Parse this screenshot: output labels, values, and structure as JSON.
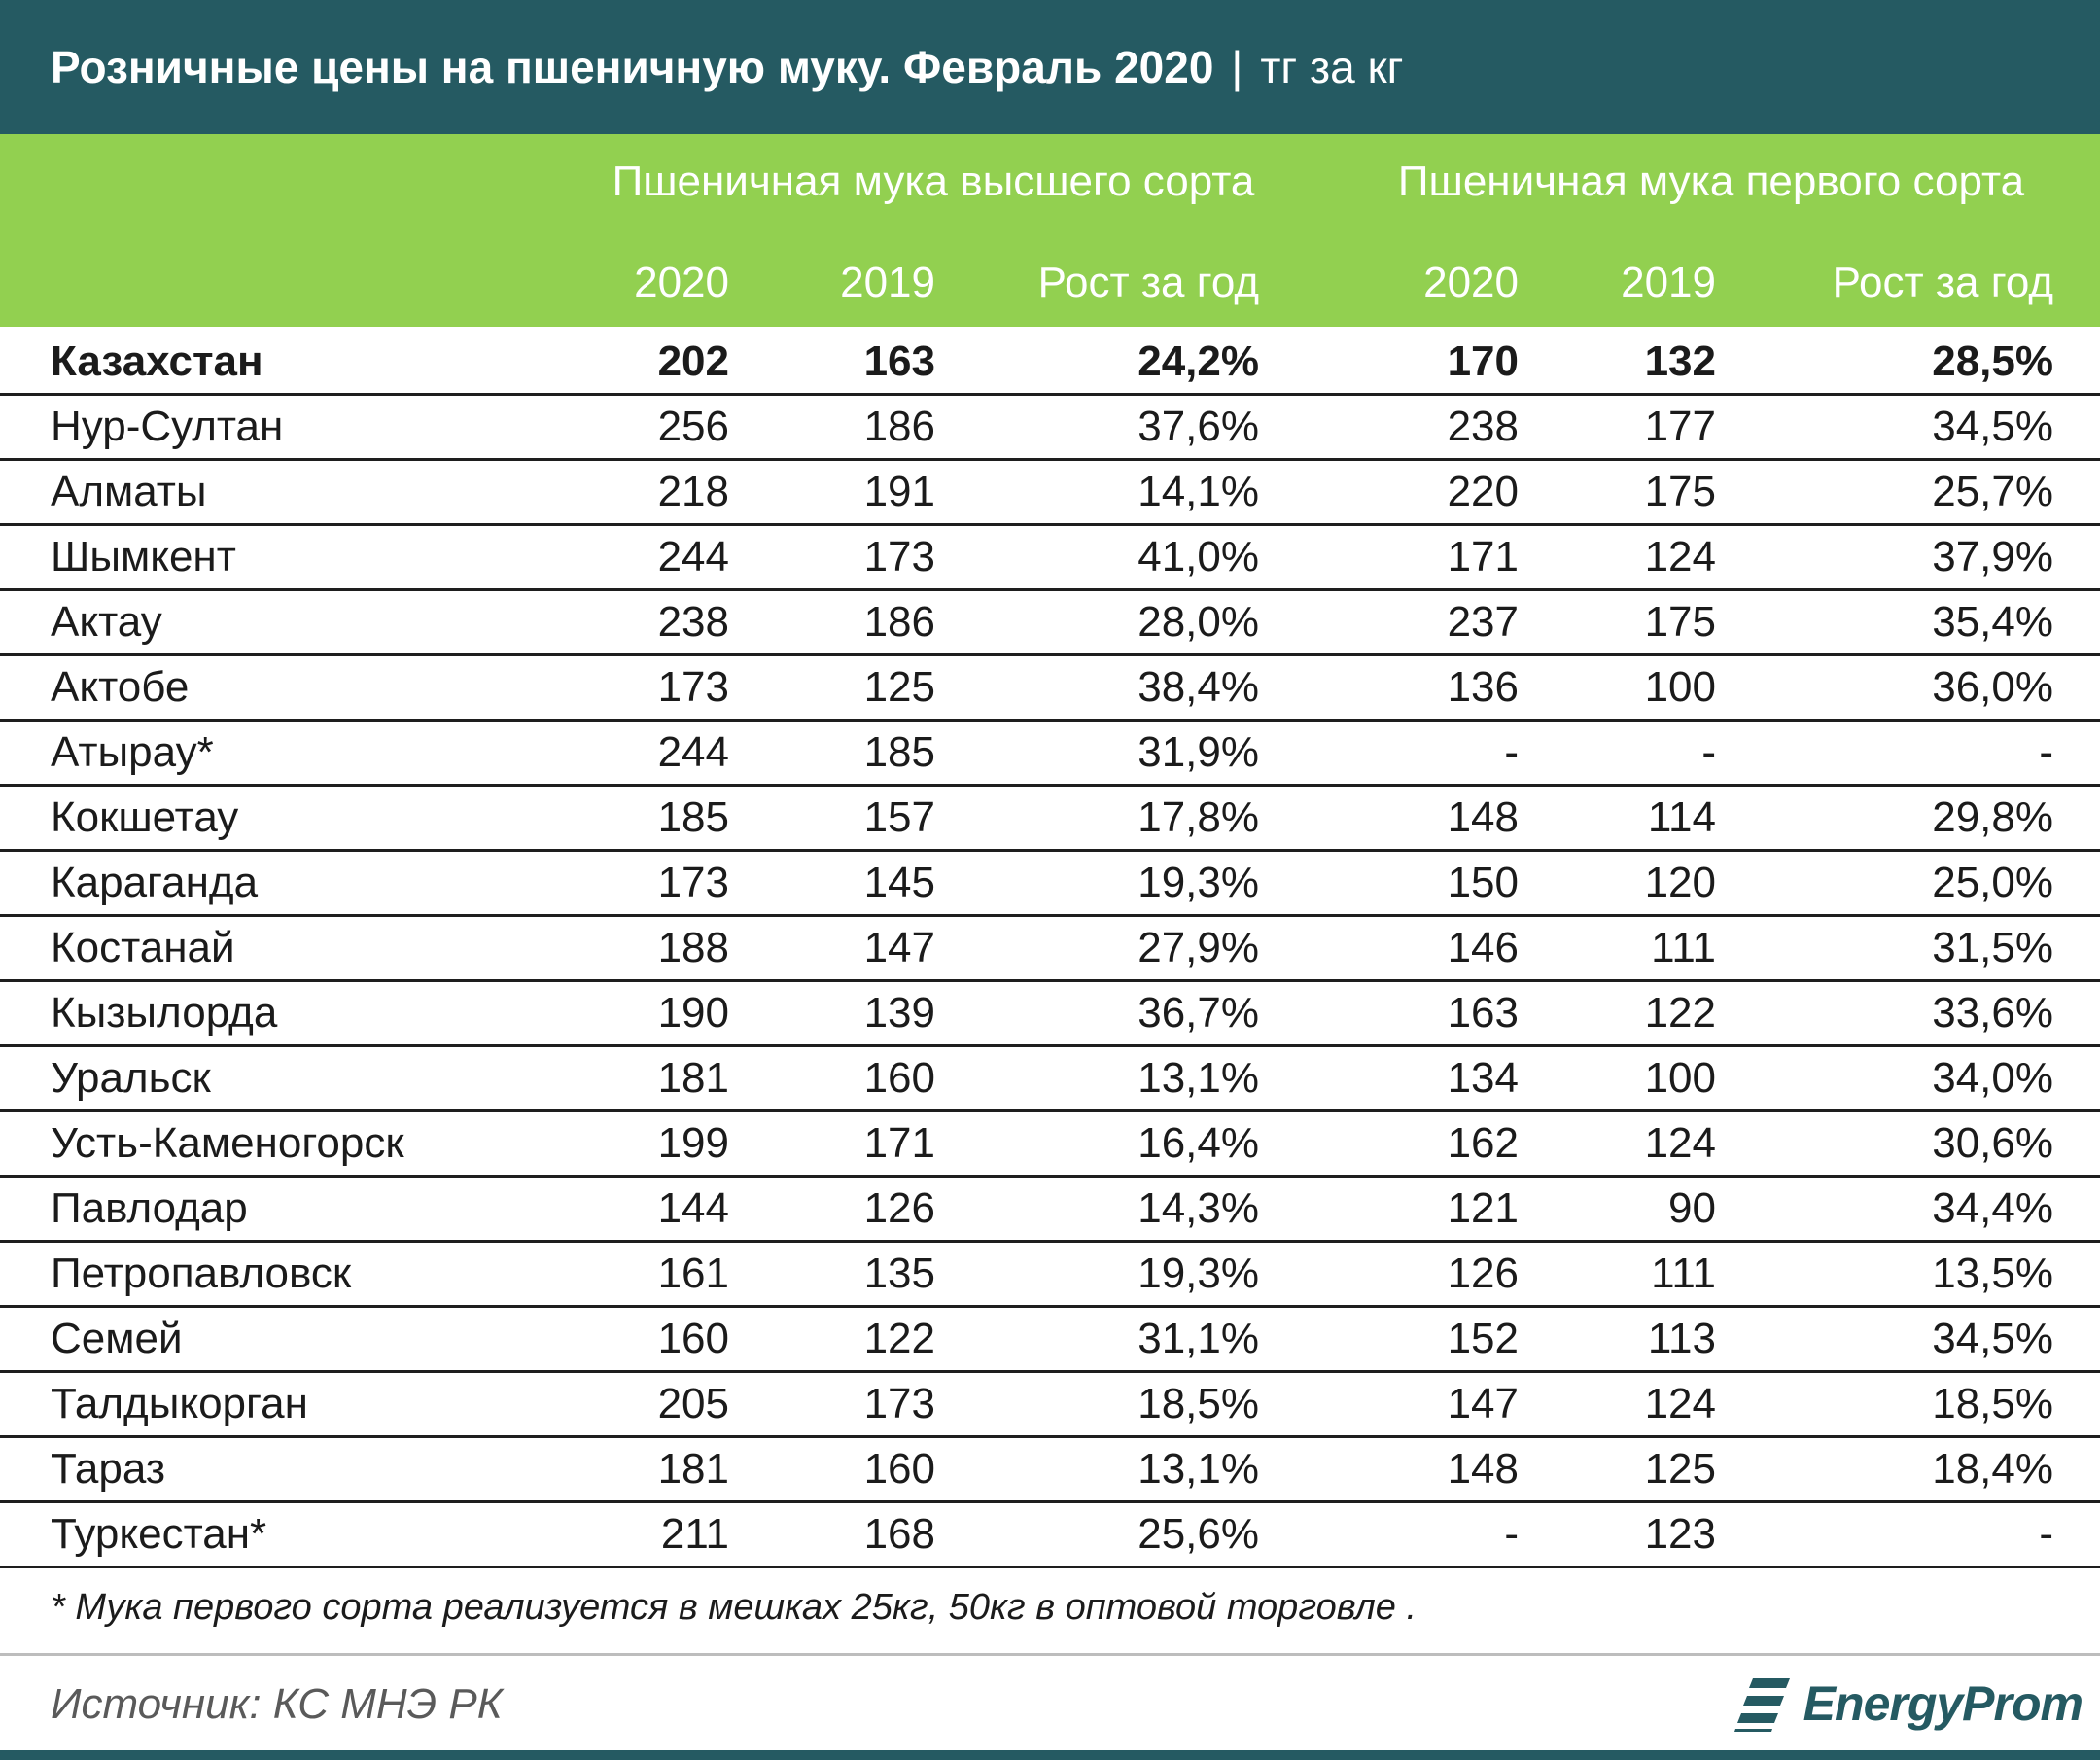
{
  "title": "Розничные цены на пшеничную муку. Февраль 2020",
  "title_sep": "|",
  "unit": "тг за кг",
  "groups": [
    "Пшеничная мука высшего сорта",
    "Пшеничная мука первого сорта"
  ],
  "columns": [
    "2020",
    "2019",
    "Рост за год",
    "2020",
    "2019",
    "Рост за год"
  ],
  "footnote": "* Мука первого сорта реализуется в мешках 25кг, 50кг в оптовой торговле .",
  "source": "Источник: КС МНЭ РК",
  "logo_text": "EnergyProm",
  "colors": {
    "title_bg": "#255a62",
    "header_bg": "#92d050"
  },
  "chart_data": {
    "type": "table",
    "title": "Розничные цены на пшеничную муку. Февраль 2020",
    "unit": "тг за кг",
    "column_groups": [
      {
        "name": "Пшеничная мука высшего сорта",
        "columns": [
          "2020",
          "2019",
          "Рост за год"
        ]
      },
      {
        "name": "Пшеничная мука первого сорта",
        "columns": [
          "2020",
          "2019",
          "Рост за год"
        ]
      }
    ],
    "rows": [
      {
        "region": "Казахстан",
        "bold": true,
        "values": [
          "202",
          "163",
          "24,2%",
          "170",
          "132",
          "28,5%"
        ]
      },
      {
        "region": "Нур-Султан",
        "values": [
          "256",
          "186",
          "37,6%",
          "238",
          "177",
          "34,5%"
        ]
      },
      {
        "region": "Алматы",
        "values": [
          "218",
          "191",
          "14,1%",
          "220",
          "175",
          "25,7%"
        ]
      },
      {
        "region": "Шымкент",
        "values": [
          "244",
          "173",
          "41,0%",
          "171",
          "124",
          "37,9%"
        ]
      },
      {
        "region": "Актау",
        "values": [
          "238",
          "186",
          "28,0%",
          "237",
          "175",
          "35,4%"
        ]
      },
      {
        "region": "Актобе",
        "values": [
          "173",
          "125",
          "38,4%",
          "136",
          "100",
          "36,0%"
        ]
      },
      {
        "region": "Атырау*",
        "values": [
          "244",
          "185",
          "31,9%",
          "-",
          "-",
          "-"
        ]
      },
      {
        "region": "Кокшетау",
        "values": [
          "185",
          "157",
          "17,8%",
          "148",
          "114",
          "29,8%"
        ]
      },
      {
        "region": "Караганда",
        "values": [
          "173",
          "145",
          "19,3%",
          "150",
          "120",
          "25,0%"
        ]
      },
      {
        "region": "Костанай",
        "values": [
          "188",
          "147",
          "27,9%",
          "146",
          "111",
          "31,5%"
        ]
      },
      {
        "region": "Кызылорда",
        "values": [
          "190",
          "139",
          "36,7%",
          "163",
          "122",
          "33,6%"
        ]
      },
      {
        "region": "Уральск",
        "values": [
          "181",
          "160",
          "13,1%",
          "134",
          "100",
          "34,0%"
        ]
      },
      {
        "region": "Усть-Каменогорск",
        "values": [
          "199",
          "171",
          "16,4%",
          "162",
          "124",
          "30,6%"
        ]
      },
      {
        "region": "Павлодар",
        "values": [
          "144",
          "126",
          "14,3%",
          "121",
          "90",
          "34,4%"
        ]
      },
      {
        "region": "Петропавловск",
        "values": [
          "161",
          "135",
          "19,3%",
          "126",
          "111",
          "13,5%"
        ]
      },
      {
        "region": "Семей",
        "values": [
          "160",
          "122",
          "31,1%",
          "152",
          "113",
          "34,5%"
        ]
      },
      {
        "region": "Талдыкорган",
        "values": [
          "205",
          "173",
          "18,5%",
          "147",
          "124",
          "18,5%"
        ]
      },
      {
        "region": "Тараз",
        "values": [
          "181",
          "160",
          "13,1%",
          "148",
          "125",
          "18,4%"
        ]
      },
      {
        "region": "Туркестан*",
        "values": [
          "211",
          "168",
          "25,6%",
          "-",
          "123",
          "-"
        ]
      }
    ]
  }
}
